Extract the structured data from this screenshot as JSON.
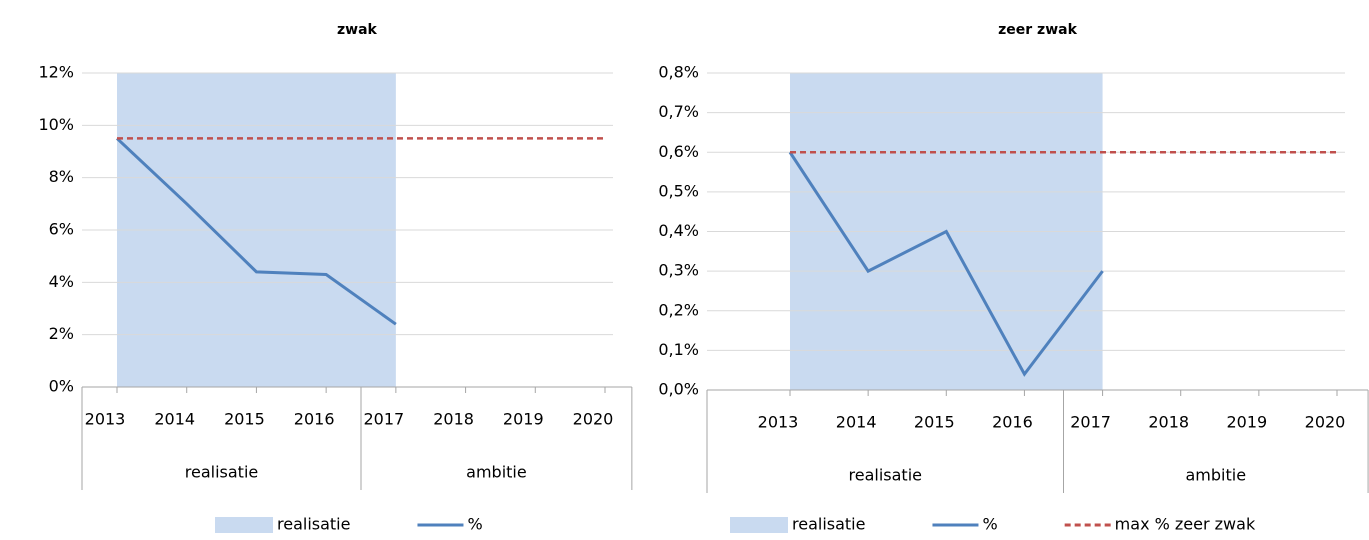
{
  "chart_data": [
    {
      "type": "line",
      "title": "zwak",
      "categories": [
        "2013",
        "2014",
        "2015",
        "2016",
        "2017",
        "2018",
        "2019",
        "2020"
      ],
      "groups": [
        {
          "label": "realisatie",
          "size": 4
        },
        {
          "label": "ambitie",
          "size": 4
        }
      ],
      "series": [
        {
          "name": "realisatie",
          "kind": "area",
          "color": "#c9daf0",
          "values": [
            12,
            12,
            12,
            12,
            12,
            null,
            null,
            null
          ]
        },
        {
          "name": "%",
          "color": "#4f81bd",
          "values": [
            9.5,
            7.0,
            4.4,
            4.3,
            2.4,
            null,
            null,
            null
          ]
        },
        {
          "color": "#c0504d",
          "dash": true,
          "values": [
            9.5,
            9.5,
            9.5,
            9.5,
            9.5,
            9.5,
            9.5,
            9.5
          ]
        }
      ],
      "ylim": [
        0,
        12
      ],
      "yticks": [
        {
          "value": 0,
          "label": "0%"
        },
        {
          "value": 2,
          "label": "2%"
        },
        {
          "value": 4,
          "label": "4%"
        },
        {
          "value": 6,
          "label": "6%"
        },
        {
          "value": 8,
          "label": "8%"
        },
        {
          "value": 10,
          "label": "10%"
        },
        {
          "value": 12,
          "label": "12%"
        }
      ],
      "grid": true,
      "legend": "bottom"
    },
    {
      "type": "line",
      "title": "zeer zwak",
      "categories": [
        "2013",
        "2014",
        "2015",
        "2016",
        "2017",
        "2018",
        "2019",
        "2020"
      ],
      "groups": [
        {
          "label": "realisatie",
          "size": 4
        },
        {
          "label": "ambitie",
          "size": 4
        }
      ],
      "series": [
        {
          "name": "realisatie",
          "kind": "area",
          "color": "#c9daf0",
          "values": [
            0.8,
            0.8,
            0.8,
            0.8,
            0.8,
            null,
            null,
            null
          ]
        },
        {
          "name": "%",
          "color": "#4f81bd",
          "values": [
            0.6,
            0.3,
            0.4,
            0.04,
            0.3,
            null,
            null,
            null
          ]
        },
        {
          "name": "max % zeer zwak",
          "color": "#c0504d",
          "dash": true,
          "values": [
            0.6,
            0.6,
            0.6,
            0.6,
            0.6,
            0.6,
            0.6,
            0.6
          ]
        }
      ],
      "ylim": [
        0,
        0.8
      ],
      "yticks": [
        {
          "value": 0,
          "label": "0,0%"
        },
        {
          "value": 0.1,
          "label": "0,1%"
        },
        {
          "value": 0.2,
          "label": "0,2%"
        },
        {
          "value": 0.3,
          "label": "0,3%"
        },
        {
          "value": 0.4,
          "label": "0,4%"
        },
        {
          "value": 0.5,
          "label": "0,5%"
        },
        {
          "value": 0.6,
          "label": "0,6%"
        },
        {
          "value": 0.7,
          "label": "0,7%"
        },
        {
          "value": 0.8,
          "label": "0,8%"
        }
      ],
      "grid": true,
      "legend": "bottom"
    }
  ]
}
